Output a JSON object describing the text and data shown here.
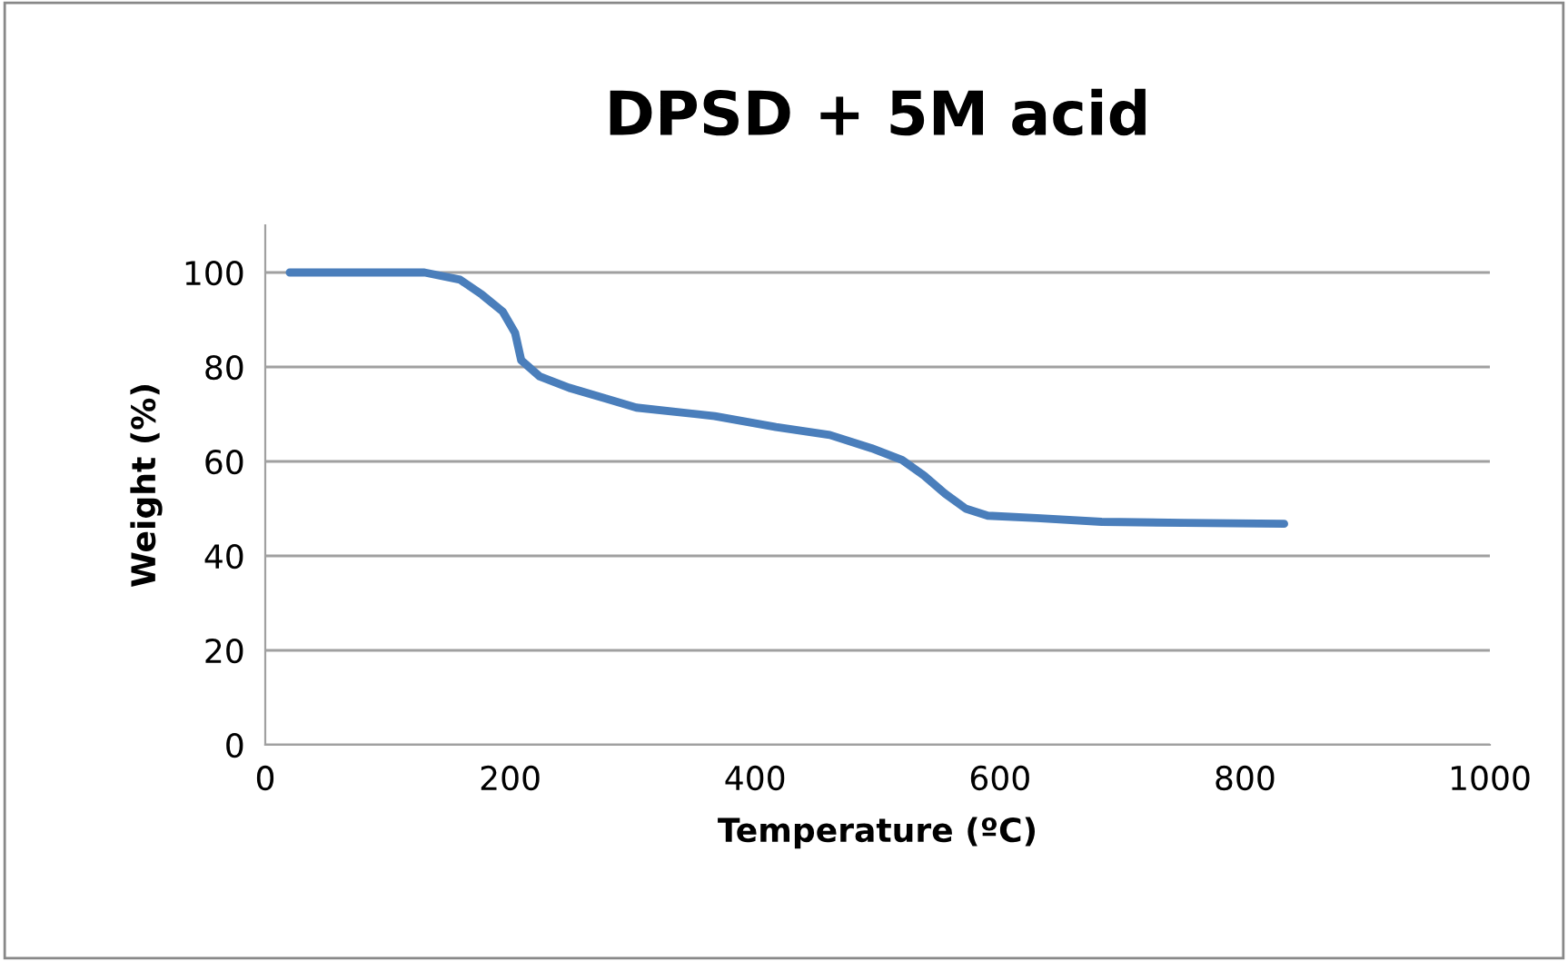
{
  "chart_data": {
    "type": "line",
    "title": "DPSD + 5M acid",
    "xlabel": "Temperature (ºC)",
    "ylabel": "Weight (%)",
    "xlim": [
      0,
      1000
    ],
    "xticks": [
      0,
      200,
      400,
      600,
      800,
      1000
    ],
    "ylim": [
      0,
      110
    ],
    "yticks": [
      0,
      20,
      40,
      60,
      80,
      100
    ],
    "grid": "y",
    "legend": false,
    "marker": "none",
    "line_style": "solid",
    "series": [
      {
        "color": "#4a7ebb",
        "x": [
          20,
          130,
          159,
          177,
          194,
          204,
          209,
          224,
          248,
          278,
          303,
          367,
          417,
          461,
          495,
          520,
          538,
          555,
          572,
          590,
          630,
          683,
          750,
          832
        ],
        "values": [
          100,
          100,
          98.5,
          95.3,
          91.7,
          87.2,
          81.4,
          78,
          75.6,
          73.3,
          71.4,
          69.6,
          67.3,
          65.6,
          62.8,
          60.3,
          57,
          53.2,
          50,
          48.5,
          48,
          47.2,
          47,
          46.8
        ]
      }
    ]
  }
}
